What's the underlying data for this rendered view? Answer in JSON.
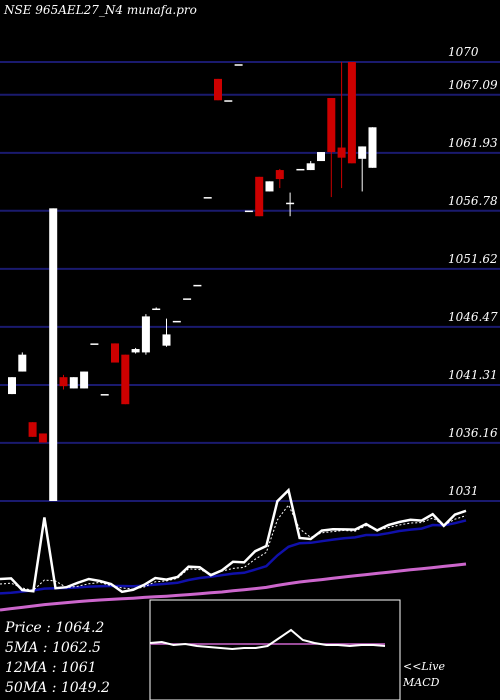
{
  "title": "NSE 965AEL27_N4  munafa.pro",
  "colors": {
    "background": "#000000",
    "grid": "#1a1a6e",
    "up": "#ffffff",
    "down": "#cc0000",
    "price_line": "#ffffff",
    "ma5_line": "#ffffff",
    "ma12_line": "#1010aa",
    "ma50_line": "#cc66cc",
    "macd_line": "#ffffff",
    "macd_signal": "#cc66cc",
    "macd_border": "#ffffff"
  },
  "indicators": {
    "price": "Price  : 1064.2",
    "ma5": "5MA : 1062.5",
    "ma12": "12MA : 1061",
    "ma50": "50MA : 1049.2"
  },
  "macd": {
    "live_label": "<<Live",
    "label": "MACD"
  },
  "chart_data": {
    "type": "candlestick",
    "title": "NSE 965AEL27_N4  munafa.pro",
    "y_ticks": [
      1070,
      1067.09,
      1061.93,
      1056.78,
      1051.62,
      1046.47,
      1041.31,
      1036.16,
      1031
    ],
    "y_tick_labels": [
      "1070",
      "1067.09",
      "1061.93",
      "1056.78",
      "1051.62",
      "1046.47",
      "1041.31",
      "1036.16",
      "1031"
    ],
    "ylim": [
      1031,
      1070
    ],
    "grid": true,
    "candles": [
      {
        "open": 1040.5,
        "close": 1042.0,
        "high": 1042.0,
        "low": 1040.5
      },
      {
        "open": 1042.5,
        "close": 1044.0,
        "high": 1044.2,
        "low": 1042.5
      },
      {
        "open": 1038.0,
        "close": 1036.7,
        "high": 1038.0,
        "low": 1036.7
      },
      {
        "open": 1037.0,
        "close": 1036.2,
        "high": 1037.0,
        "low": 1036.2
      },
      {
        "open": 1031.0,
        "close": 1057.0,
        "high": 1057.0,
        "low": 1031.0
      },
      {
        "open": 1042.0,
        "close": 1041.2,
        "high": 1042.2,
        "low": 1040.9
      },
      {
        "open": 1041.0,
        "close": 1042.0,
        "high": 1042.0,
        "low": 1041.0
      },
      {
        "open": 1041.0,
        "close": 1042.5,
        "high": 1042.5,
        "low": 1041.0
      },
      {
        "open": 1045.0,
        "close": 1045.0,
        "high": 1045.0,
        "low": 1045.0
      },
      {
        "open": 1040.5,
        "close": 1040.5,
        "high": 1040.5,
        "low": 1040.5
      },
      {
        "open": 1045.0,
        "close": 1043.3,
        "high": 1045.0,
        "low": 1043.3
      },
      {
        "open": 1044.0,
        "close": 1039.6,
        "high": 1044.0,
        "low": 1039.6
      },
      {
        "open": 1044.2,
        "close": 1044.5,
        "high": 1044.6,
        "low": 1044.1
      },
      {
        "open": 1044.2,
        "close": 1047.4,
        "high": 1047.6,
        "low": 1044.0
      },
      {
        "open": 1048.0,
        "close": 1048.1,
        "high": 1048.2,
        "low": 1048.0
      },
      {
        "open": 1044.8,
        "close": 1045.8,
        "high": 1047.2,
        "low": 1044.7
      },
      {
        "open": 1047.0,
        "close": 1047.0,
        "high": 1047.0,
        "low": 1047.0
      },
      {
        "open": 1049.0,
        "close": 1049.0,
        "high": 1049.0,
        "low": 1049.0
      },
      {
        "open": 1050.2,
        "close": 1050.2,
        "high": 1050.2,
        "low": 1050.2
      },
      {
        "open": 1058.0,
        "close": 1058.0,
        "high": 1058.0,
        "low": 1058.0
      },
      {
        "open": 1068.5,
        "close": 1066.6,
        "high": 1068.5,
        "low": 1066.6
      },
      {
        "open": 1066.6,
        "close": 1066.6,
        "high": 1066.6,
        "low": 1066.6
      },
      {
        "open": 1069.8,
        "close": 1069.8,
        "high": 1069.8,
        "low": 1069.8
      },
      {
        "open": 1056.8,
        "close": 1056.8,
        "high": 1056.8,
        "low": 1056.8
      },
      {
        "open": 1059.8,
        "close": 1056.3,
        "high": 1059.8,
        "low": 1056.3
      },
      {
        "open": 1058.5,
        "close": 1059.4,
        "high": 1059.4,
        "low": 1058.5
      },
      {
        "open": 1060.4,
        "close": 1059.6,
        "high": 1060.5,
        "low": 1058.8
      },
      {
        "open": 1057.5,
        "close": 1057.5,
        "high": 1058.4,
        "low": 1056.3
      },
      {
        "open": 1060.5,
        "close": 1060.5,
        "high": 1060.5,
        "low": 1060.5
      },
      {
        "open": 1060.4,
        "close": 1061.0,
        "high": 1061.2,
        "low": 1060.4
      },
      {
        "open": 1061.2,
        "close": 1062.0,
        "high": 1062.0,
        "low": 1061.2
      },
      {
        "open": 1066.8,
        "close": 1062.0,
        "high": 1066.8,
        "low": 1058.0
      },
      {
        "open": 1062.4,
        "close": 1061.5,
        "high": 1070.0,
        "low": 1058.8
      },
      {
        "open": 1070.0,
        "close": 1061.0,
        "high": 1070.0,
        "low": 1061.0
      },
      {
        "open": 1061.4,
        "close": 1062.5,
        "high": 1062.5,
        "low": 1058.5
      },
      {
        "open": 1060.6,
        "close": 1064.2,
        "high": 1064.2,
        "low": 1060.6
      }
    ],
    "price_line": [
      55.5,
      55.8,
      50.0,
      49.4,
      86.3,
      50.9,
      51.4,
      53.6,
      55.5,
      54.5,
      53.0,
      49.1,
      50.1,
      52.6,
      56.0,
      55.2,
      56.5,
      61.7,
      61.4,
      57.4,
      59.8,
      64.1,
      63.8,
      69.4,
      72.0,
      94.4,
      99.9,
      76.0,
      75.5,
      79.7,
      80.4,
      80.3,
      80.2,
      83.0,
      79.8,
      82.5,
      84.0,
      85.1,
      84.7,
      87.9,
      82.1,
      87.7,
      89.6
    ],
    "ma5_line": [
      53.0,
      53.4,
      51.0,
      49.8,
      55.0,
      54.5,
      51.2,
      51.9,
      53.1,
      53.8,
      52.2,
      51.0,
      50.5,
      51.5,
      54.1,
      54.5,
      55.9,
      60.6,
      60.2,
      58.0,
      59.4,
      60.8,
      61.3,
      65.4,
      68.8,
      85.1,
      92.5,
      80.6,
      76.3,
      78.6,
      79.2,
      79.8,
      79.4,
      82.2,
      79.9,
      81.2,
      82.5,
      83.5,
      83.7,
      86.0,
      82.3,
      85.4,
      87.2
    ],
    "ma12_line": [
      48.3,
      48.6,
      49.2,
      49.8,
      50.7,
      50.9,
      51.0,
      51.3,
      51.7,
      51.9,
      52.0,
      52.0,
      51.9,
      52.2,
      52.7,
      53.1,
      53.6,
      55.0,
      56.0,
      56.6,
      57.4,
      58.2,
      58.6,
      60.2,
      61.9,
      67.3,
      71.6,
      73.4,
      73.6,
      74.4,
      75.2,
      75.9,
      76.3,
      77.5,
      77.5,
      78.4,
      79.5,
      80.2,
      80.7,
      82.5,
      82.3,
      83.4,
      84.8
    ],
    "ma50_line": [
      40.0,
      40.7,
      41.3,
      42.0,
      42.7,
      43.2,
      43.7,
      44.2,
      44.6,
      45.0,
      45.3,
      45.6,
      45.9,
      46.3,
      46.6,
      46.9,
      47.3,
      47.7,
      48.1,
      48.6,
      49.0,
      49.6,
      50.1,
      50.7,
      51.3,
      52.3,
      53.2,
      54.0,
      54.6,
      55.2,
      55.9,
      56.5,
      57.1,
      57.7,
      58.3,
      58.9,
      59.5,
      60.1,
      60.6,
      61.2,
      61.8,
      62.4,
      63.0
    ],
    "macd_line": [
      57,
      58,
      55,
      56,
      54,
      53,
      52,
      51,
      52,
      52,
      54,
      62,
      70,
      60,
      57,
      55,
      55,
      54,
      55,
      55,
      54
    ],
    "macd_signal": [
      56,
      56,
      56,
      56,
      56,
      56,
      56,
      56,
      56,
      56,
      56,
      56,
      56,
      56,
      56,
      56,
      56,
      56,
      56,
      56,
      56
    ]
  }
}
